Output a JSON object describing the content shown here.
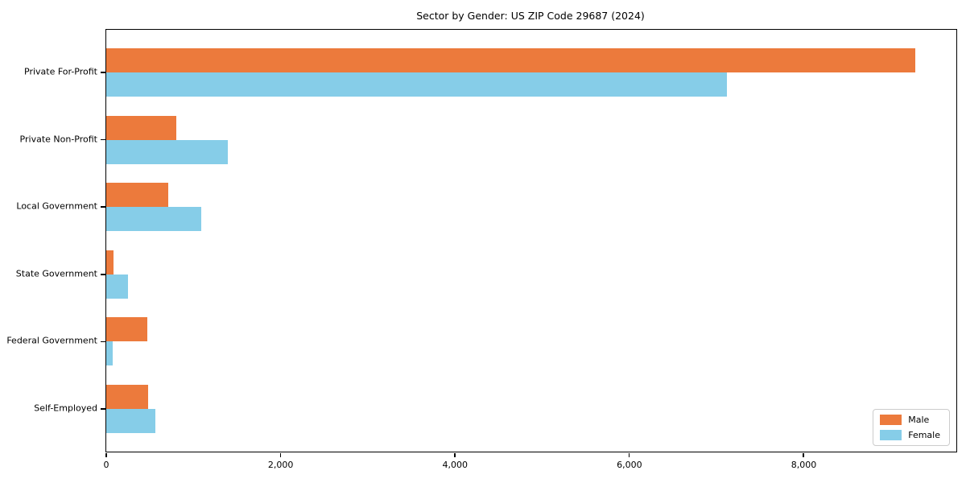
{
  "chart_data": {
    "type": "bar",
    "orientation": "horizontal",
    "title": "Sector by Gender: US ZIP Code 29687 (2024)",
    "categories": [
      "Private For-Profit",
      "Private Non-Profit",
      "Local Government",
      "State Government",
      "Federal Government",
      "Self-Employed"
    ],
    "series": [
      {
        "name": "Male",
        "color": "#ec7a3c",
        "values": [
          9280,
          800,
          710,
          85,
          475,
          480
        ]
      },
      {
        "name": "Female",
        "color": "#86cde8",
        "values": [
          7120,
          1390,
          1085,
          245,
          70,
          560
        ]
      }
    ],
    "xlim": [
      0,
      9750
    ],
    "xticks": [
      0,
      2000,
      4000,
      6000,
      8000
    ],
    "xtick_labels": [
      "0",
      "2,000",
      "4,000",
      "6,000",
      "8,000"
    ],
    "grid": false,
    "legend_position": "lower right",
    "background": "#ffffff",
    "axis_color": "#000000"
  }
}
